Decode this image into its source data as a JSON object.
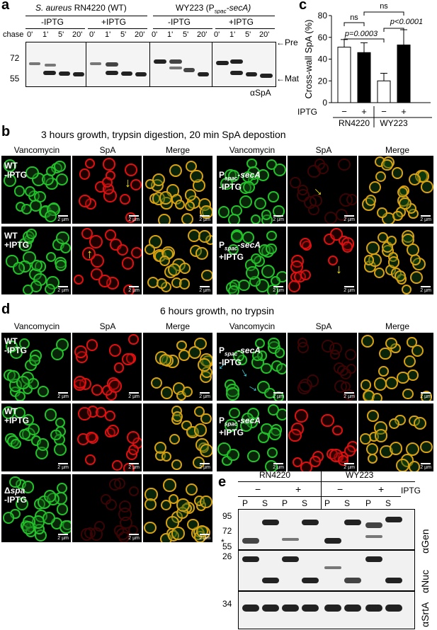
{
  "panel_a": {
    "label": "a",
    "strain_wt": "S. aureus RN4220 (WT)",
    "strain_wt_italic": "S. aureus",
    "strain_wt_rest": " RN4220 (WT)",
    "strain_mut": "WY223 (P",
    "strain_mut_sub": "spac",
    "strain_mut_end": "-secA)",
    "cond_minus": "-IPTG",
    "cond_plus": "+IPTG",
    "chase_label": "chase",
    "times": [
      "0'",
      "1'",
      "5'",
      "20'"
    ],
    "mw_top": "72",
    "mw_bottom": "55",
    "pre_label": "Pre",
    "mat_label": "Mat",
    "antibody": "αSpA"
  },
  "panel_c": {
    "label": "c",
    "chart_data": {
      "type": "bar",
      "ylabel": "Cross-wall SpA (%)",
      "ylim": [
        0,
        80
      ],
      "yticks": [
        0,
        20,
        40,
        60,
        80
      ],
      "categories": [
        "RN4220 −",
        "RN4220 +",
        "WY223 −",
        "WY223 +"
      ],
      "series": [
        {
          "values": [
            51,
            46,
            20,
            53
          ],
          "errors": [
            7,
            9,
            7,
            14
          ]
        }
      ],
      "fills": [
        "#ffffff",
        "#000000",
        "#ffffff",
        "#000000"
      ],
      "annotations": [
        "ns",
        "p=0.0003",
        "ns",
        "p<0.0001"
      ],
      "iptg_label": "IPTG",
      "iptg_marks": [
        "−",
        "+",
        "−",
        "+"
      ],
      "group_labels": [
        "RN4220",
        "WY223"
      ]
    }
  },
  "panel_b": {
    "label": "b",
    "title": "3 hours growth, trypsin digestion, 20 min SpA depostion",
    "columns": [
      "Vancomycin",
      "SpA",
      "Merge",
      "Vancomycin",
      "SpA",
      "Merge"
    ],
    "row1_left_caption": "WT\n-IPTG",
    "row1_right_caption_pre": "P",
    "row1_right_caption_sub": "spac",
    "row1_right_caption_end": "-secA",
    "row1_right_caption_cond": "-IPTG",
    "row2_left_caption": "WT\n+IPTG",
    "row2_right_caption_cond": "+IPTG",
    "scale": "2 µm"
  },
  "panel_d": {
    "label": "d",
    "title": "6 hours growth, no trypsin",
    "columns": [
      "Vancomycin",
      "SpA",
      "Merge",
      "Vancomycin",
      "SpA",
      "Merge"
    ],
    "row1_left_caption": "WT\n-IPTG",
    "row2_left_caption": "WT\n+IPTG",
    "row3_left_caption_pre": "Δ",
    "row3_left_caption_name": "spa",
    "row3_left_caption_cond": "-IPTG",
    "scale": "2 µm"
  },
  "panel_e": {
    "label": "e",
    "strains": [
      "RN4220",
      "WY223"
    ],
    "iptg_marks": [
      "−",
      "+",
      "−",
      "+"
    ],
    "iptg_label": "IPTG",
    "fractions": [
      "P",
      "S",
      "P",
      "S",
      "P",
      "S",
      "P",
      "S"
    ],
    "mw_markers": [
      "95",
      "72",
      "55",
      "26",
      "34"
    ],
    "antibodies": [
      "αGen",
      "αNuc",
      "αSrtA"
    ],
    "asterisk": "*"
  },
  "colors": {
    "vancomycin": "#22c22a",
    "spa": "#e01010",
    "merge": "#d9a010",
    "arrow_yellow": "#f2e400",
    "arrow_cyan": "#3fd0e6"
  }
}
